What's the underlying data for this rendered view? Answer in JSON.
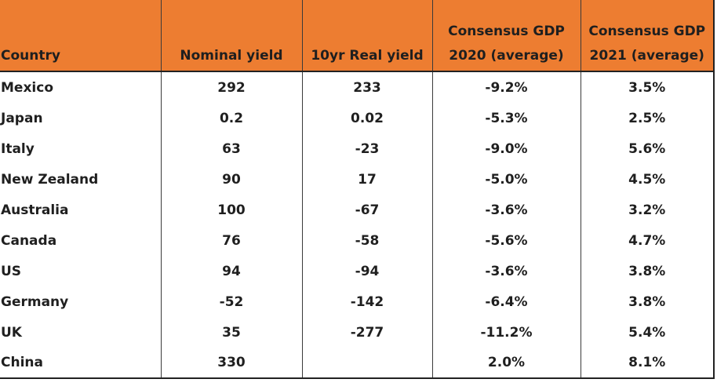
{
  "chart_data": {
    "type": "table",
    "columns": [
      "Country",
      "Nominal yield",
      "10yr Real yield",
      "Consensus GDP 2020 (average)",
      "Consensus GDP 2021 (average)"
    ],
    "header_lines": [
      [
        "Country"
      ],
      [
        "Nominal yield"
      ],
      [
        "10yr Real yield"
      ],
      [
        "Consensus GDP",
        "2020 (average)"
      ],
      [
        "Consensus GDP",
        "2021 (average)"
      ]
    ],
    "rows": [
      [
        "Mexico",
        "292",
        "233",
        "-9.2%",
        "3.5%"
      ],
      [
        "Japan",
        "0.2",
        "0.02",
        "-5.3%",
        "2.5%"
      ],
      [
        "Italy",
        "63",
        "-23",
        "-9.0%",
        "5.6%"
      ],
      [
        "New Zealand",
        "90",
        "17",
        "-5.0%",
        "4.5%"
      ],
      [
        "Australia",
        "100",
        "-67",
        "-3.6%",
        "3.2%"
      ],
      [
        "Canada",
        "76",
        "-58",
        "-5.6%",
        "4.7%"
      ],
      [
        "US",
        "94",
        "-94",
        "-3.6%",
        "3.8%"
      ],
      [
        "Germany",
        "-52",
        "-142",
        "-6.4%",
        "3.8%"
      ],
      [
        "UK",
        "35",
        "-277",
        "-11.2%",
        "5.4%"
      ],
      [
        "China",
        "330",
        "",
        "2.0%",
        "8.1%"
      ]
    ],
    "header_color": "#ed7d31"
  }
}
